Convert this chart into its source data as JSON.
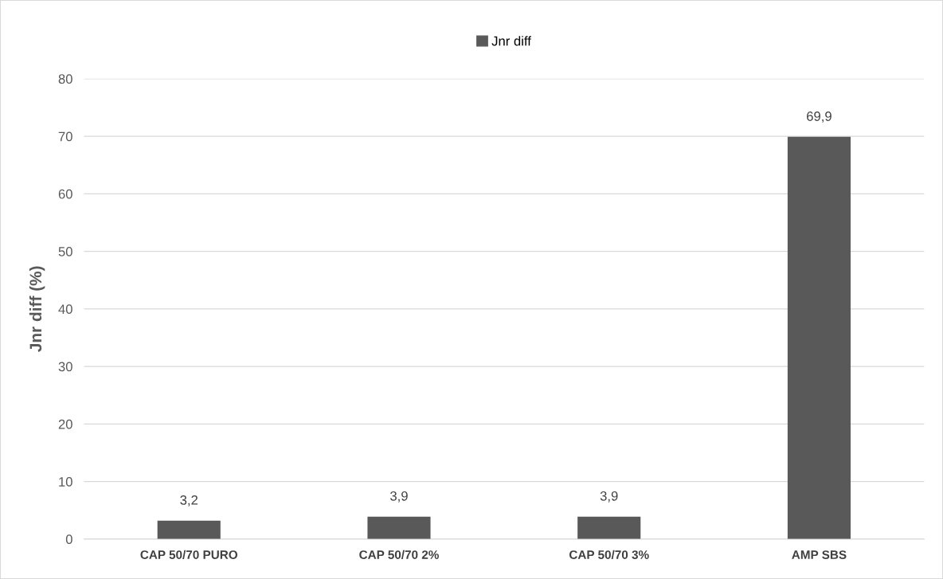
{
  "chart_data": {
    "type": "bar",
    "ylabel": "Jnr diff (%)",
    "categories": [
      "CAP 50/70 PURO",
      "CAP 50/70 2%",
      "CAP 50/70 3%",
      "AMP SBS"
    ],
    "series": [
      {
        "name": "Jnr diff",
        "color": "#595959",
        "values": [
          3.2,
          3.9,
          3.9,
          69.9
        ],
        "value_labels": [
          "3,2",
          "3,9",
          "3,9",
          "69,9"
        ]
      }
    ],
    "ylim": [
      0,
      80
    ],
    "yticks": [
      0,
      10,
      20,
      30,
      40,
      50,
      60,
      70,
      80
    ],
    "grid": "y",
    "legend": "top"
  }
}
